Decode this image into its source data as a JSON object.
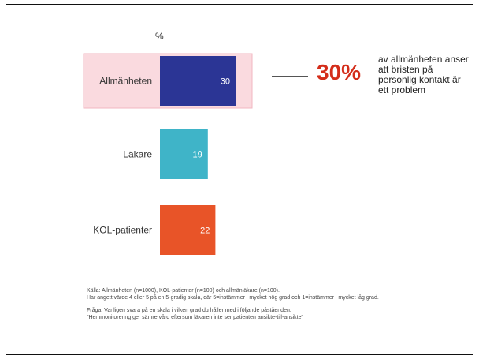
{
  "chart_data": {
    "type": "bar",
    "orientation": "horizontal",
    "unit_label": "%",
    "categories": [
      "Allmänheten",
      "Läkare",
      "KOL-patienter"
    ],
    "values": [
      30,
      19,
      22
    ],
    "bar_colors": [
      "#2b3595",
      "#3fb4c8",
      "#e85428"
    ],
    "highlight_color": "#fadadf",
    "highlight_category": "Allmänheten",
    "xlim": [
      0,
      30
    ],
    "grid": false,
    "legend": "none"
  },
  "callout": {
    "value": "30%",
    "text": "av allmänheten anser att bristen på personlig kontakt är ett problem",
    "color": "#d42d1a"
  },
  "footnotes": {
    "source_line1": "Källa: Allmänheten (n=1000), KOL-patienter (n=100) och allmänläkare (n=100).",
    "source_line2": "Har angett värde 4 eller 5 på en 5-gradig skala, där 5=instämmer i mycket hög grad och 1=instämmer i mycket låg grad.",
    "question_line1": "Fråga: Vanligen svara på en skala i vilken grad du håller med i följande påståenden.",
    "question_line2": "\"Hemmonitorering ger sämre vård eftersom läkaren inte ser patienten ansikte-till-ansikte\""
  }
}
